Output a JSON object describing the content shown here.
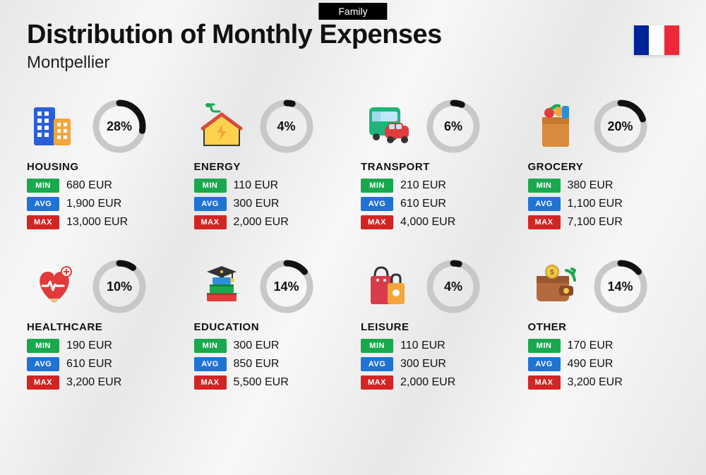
{
  "header": {
    "tag": "Family",
    "title": "Distribution of Monthly Expenses",
    "subtitle": "Montpellier"
  },
  "flag": {
    "left": "#002395",
    "middle": "#ffffff",
    "right": "#ed2939"
  },
  "ring": {
    "radius": 33,
    "stroke_width": 9,
    "track_color": "#c8c8c8",
    "progress_color": "#111111"
  },
  "labels": {
    "min": "MIN",
    "avg": "AVG",
    "max": "MAX"
  },
  "tag_colors": {
    "min": "#1aa84f",
    "avg": "#1f73d4",
    "max": "#d32424"
  },
  "currency": "EUR",
  "categories": [
    {
      "id": "housing",
      "name": "HOUSING",
      "percent": 28,
      "min": "680",
      "avg": "1,900",
      "max": "13,000",
      "icon": "buildings"
    },
    {
      "id": "energy",
      "name": "ENERGY",
      "percent": 4,
      "min": "110",
      "avg": "300",
      "max": "2,000",
      "icon": "energy-house"
    },
    {
      "id": "transport",
      "name": "TRANSPORT",
      "percent": 6,
      "min": "210",
      "avg": "610",
      "max": "4,000",
      "icon": "bus-car"
    },
    {
      "id": "grocery",
      "name": "GROCERY",
      "percent": 20,
      "min": "380",
      "avg": "1,100",
      "max": "7,100",
      "icon": "grocery-bag"
    },
    {
      "id": "healthcare",
      "name": "HEALTHCARE",
      "percent": 10,
      "min": "190",
      "avg": "610",
      "max": "3,200",
      "icon": "health-heart"
    },
    {
      "id": "education",
      "name": "EDUCATION",
      "percent": 14,
      "min": "300",
      "avg": "850",
      "max": "5,500",
      "icon": "grad-books"
    },
    {
      "id": "leisure",
      "name": "LEISURE",
      "percent": 4,
      "min": "110",
      "avg": "300",
      "max": "2,000",
      "icon": "shopping-bags"
    },
    {
      "id": "other",
      "name": "OTHER",
      "percent": 14,
      "min": "170",
      "avg": "490",
      "max": "3,200",
      "icon": "wallet"
    }
  ]
}
